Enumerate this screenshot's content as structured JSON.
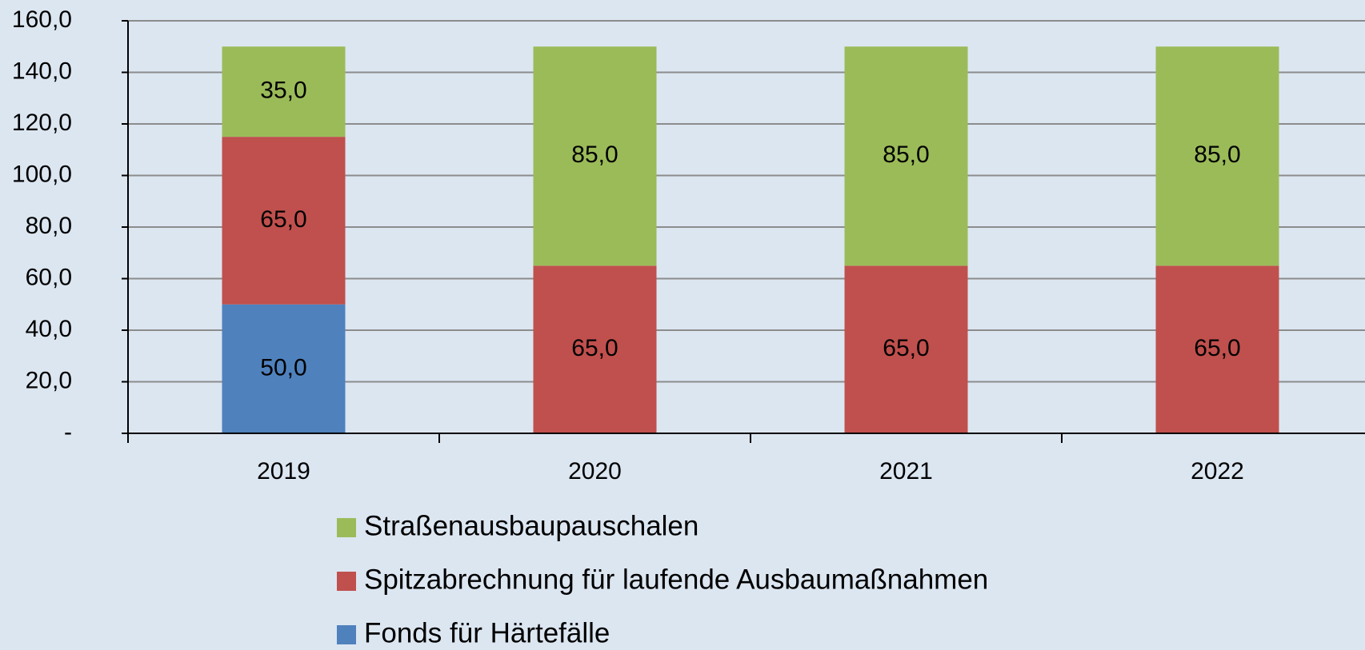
{
  "chart_data": {
    "type": "stacked_bar",
    "categories": [
      "2019",
      "2020",
      "2021",
      "2022"
    ],
    "series": [
      {
        "name": "Fonds für Härtefälle",
        "color": "#4f81bd",
        "values": [
          50,
          null,
          null,
          null
        ],
        "value_labels": [
          "50,0",
          null,
          null,
          null
        ]
      },
      {
        "name": "Spitzabrechnung für laufende Ausbaumaßnahmen",
        "color": "#c0504d",
        "values": [
          65,
          65,
          65,
          65
        ],
        "value_labels": [
          "65,0",
          "65,0",
          "65,0",
          "65,0"
        ]
      },
      {
        "name": "Straßenausbaupauschalen",
        "color": "#9bbb59",
        "values": [
          35,
          85,
          85,
          85
        ],
        "value_labels": [
          "35,0",
          "85,0",
          "85,0",
          "85,0"
        ]
      }
    ],
    "ylim": [
      0,
      160
    ],
    "yticks": [
      {
        "value": 0,
        "label": "-"
      },
      {
        "value": 20,
        "label": "20,0"
      },
      {
        "value": 40,
        "label": "40,0"
      },
      {
        "value": 60,
        "label": "60,0"
      },
      {
        "value": 80,
        "label": "80,0"
      },
      {
        "value": 100,
        "label": "100,0"
      },
      {
        "value": 120,
        "label": "120,0"
      },
      {
        "value": 140,
        "label": "140,0"
      },
      {
        "value": 160,
        "label": "160,0"
      }
    ],
    "grid": true
  }
}
